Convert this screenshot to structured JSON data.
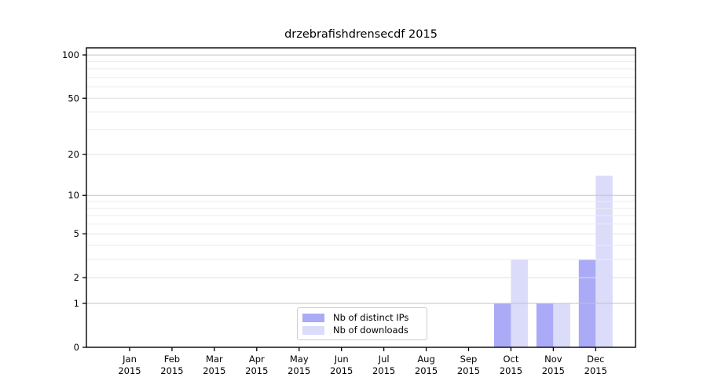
{
  "title": "drzebrafishdrensecdf 2015",
  "legend": {
    "items": [
      {
        "label": "Nb of distinct IPs",
        "color": "#aaaaf6"
      },
      {
        "label": "Nb of downloads",
        "color": "#dbdbfa"
      }
    ]
  },
  "chart_data": {
    "type": "bar",
    "title": "drzebrafishdrensecdf 2015",
    "categories": [
      "Jan",
      "Feb",
      "Mar",
      "Apr",
      "May",
      "Jun",
      "Jul",
      "Aug",
      "Sep",
      "Oct",
      "Nov",
      "Dec"
    ],
    "category_year": "2015",
    "series": [
      {
        "name": "Nb of distinct IPs",
        "color": "#aaaaf6",
        "values": [
          0,
          0,
          0,
          0,
          0,
          0,
          0,
          0,
          0,
          1,
          1,
          3
        ]
      },
      {
        "name": "Nb of downloads",
        "color": "#dbdbfa",
        "values": [
          0,
          0,
          0,
          0,
          0,
          0,
          0,
          0,
          0,
          3,
          1,
          14
        ]
      }
    ],
    "yscale": "log1p",
    "ylim": [
      0,
      112
    ],
    "yticks": [
      0,
      1,
      2,
      5,
      10,
      20,
      50,
      100
    ],
    "yticks_minor": [
      3,
      4,
      6,
      7,
      8,
      9,
      30,
      40,
      60,
      70,
      80,
      90
    ],
    "grid": true,
    "legend_position": "lower center",
    "xlabel": "",
    "ylabel": "",
    "colors": {
      "axis": "#000000",
      "grid_decade": "#c3c3c3",
      "grid_major": "#e1e1e1",
      "grid_minor": "#eeeeee",
      "background": "#ffffff",
      "text": "#000000"
    }
  }
}
